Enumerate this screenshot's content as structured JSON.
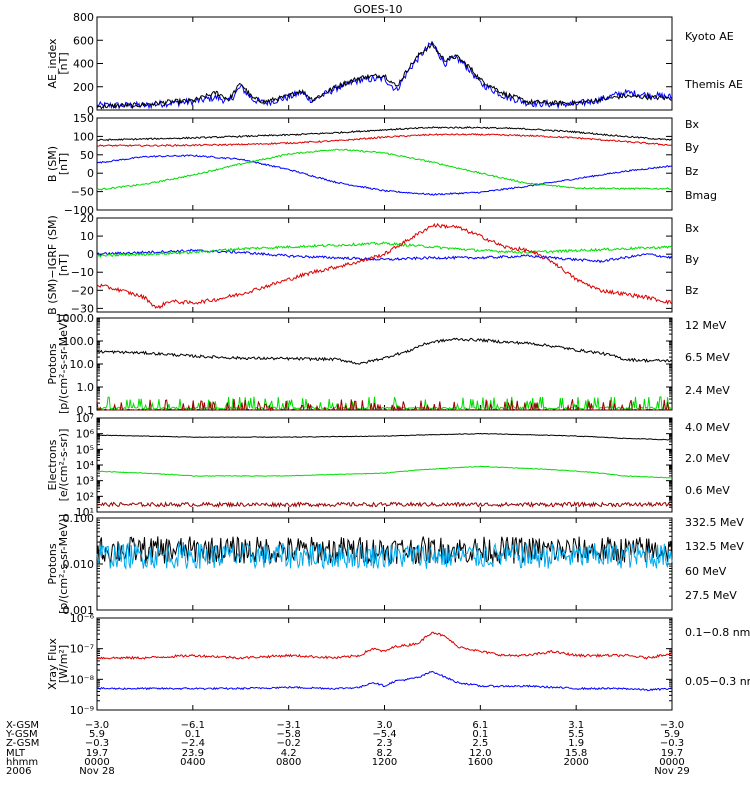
{
  "title": "GOES-10",
  "x_ticks": [
    0,
    4,
    8,
    12,
    16,
    20,
    24
  ],
  "colors": {
    "black": "#000000",
    "blue": "#0000ff",
    "green": "#00dd00",
    "red": "#dd0000",
    "darkred": "#9a0000",
    "cyan": "#00aaee",
    "orange": "#ffd200"
  },
  "panels": [
    {
      "key": "ae",
      "ylabel": [
        "AE_index",
        "[nT]"
      ],
      "scale": "linear",
      "ylim": [
        0,
        800
      ],
      "yticks": [
        "0",
        "200",
        "400",
        "600",
        "800"
      ],
      "ytick_values": [
        0,
        200,
        400,
        600,
        800
      ],
      "legend": [
        {
          "text": "Kyoto AE",
          "color": "#0000ff"
        },
        {
          "text": "Themis AE",
          "color": "#000000"
        }
      ],
      "series": [
        {
          "name": "Kyoto AE",
          "color": "#0000ff",
          "noise": 30,
          "x": [
            0,
            2,
            3,
            4,
            5,
            5.5,
            6,
            6.5,
            7,
            8,
            8.5,
            9,
            10,
            11,
            12,
            12.5,
            13,
            13.5,
            14,
            14.5,
            15,
            15.5,
            16,
            17,
            18,
            19,
            20,
            21,
            22,
            23,
            24
          ],
          "y": [
            40,
            40,
            60,
            70,
            110,
            70,
            200,
            90,
            60,
            110,
            150,
            80,
            190,
            260,
            270,
            170,
            340,
            470,
            580,
            400,
            450,
            360,
            230,
            120,
            60,
            50,
            50,
            90,
            150,
            130,
            110
          ]
        },
        {
          "name": "Themis AE",
          "color": "#000000",
          "noise": 20,
          "x": [
            0,
            2,
            3,
            4,
            5,
            5.5,
            6,
            6.5,
            7,
            8,
            8.5,
            9,
            10,
            11,
            12,
            12.5,
            13,
            13.5,
            14,
            14.5,
            15,
            15.5,
            16,
            17,
            18,
            19,
            20,
            21,
            22,
            23,
            24
          ],
          "y": [
            30,
            45,
            70,
            80,
            150,
            90,
            230,
            100,
            70,
            120,
            170,
            90,
            200,
            280,
            300,
            200,
            360,
            490,
            560,
            430,
            460,
            380,
            260,
            140,
            70,
            60,
            60,
            90,
            120,
            110,
            100
          ]
        }
      ]
    },
    {
      "key": "bsm",
      "ylabel": [
        "B (SM)",
        "[nT]"
      ],
      "scale": "linear",
      "ylim": [
        -100,
        150
      ],
      "yticks": [
        "−100",
        "−50",
        "0",
        "50",
        "100",
        "150"
      ],
      "ytick_values": [
        -100,
        -50,
        0,
        50,
        100,
        150
      ],
      "legend": [
        {
          "text": "Bx",
          "color": "#0000ff"
        },
        {
          "text": "By",
          "color": "#00dd00"
        },
        {
          "text": "Bz",
          "color": "#dd0000"
        },
        {
          "text": "Bmag",
          "color": "#000000"
        }
      ],
      "series": [
        {
          "name": "Bx",
          "color": "#0000ff",
          "noise": 0.5,
          "x": [
            0,
            2,
            4,
            6,
            8,
            10,
            12,
            14,
            16,
            18,
            20,
            22,
            24
          ],
          "y": [
            28,
            45,
            48,
            38,
            10,
            -25,
            -48,
            -58,
            -52,
            -35,
            -15,
            5,
            20
          ]
        },
        {
          "name": "By",
          "color": "#00dd00",
          "noise": 0.5,
          "x": [
            0,
            2,
            4,
            6,
            8,
            10,
            12,
            14,
            16,
            18,
            20,
            22,
            24
          ],
          "y": [
            -45,
            -30,
            -5,
            25,
            52,
            65,
            55,
            30,
            0,
            -28,
            -40,
            -42,
            -42
          ]
        },
        {
          "name": "Bz",
          "color": "#dd0000",
          "noise": 0.5,
          "x": [
            0,
            2,
            4,
            6,
            8,
            10,
            12,
            14,
            16,
            18,
            20,
            22,
            24
          ],
          "y": [
            75,
            75,
            76,
            78,
            82,
            88,
            98,
            105,
            105,
            102,
            96,
            86,
            76
          ]
        },
        {
          "name": "Bmag",
          "color": "#000000",
          "noise": 0.5,
          "x": [
            0,
            2,
            4,
            6,
            8,
            10,
            12,
            14,
            16,
            18,
            20,
            22,
            24
          ],
          "y": [
            90,
            93,
            96,
            100,
            104,
            110,
            118,
            124,
            124,
            120,
            112,
            100,
            90
          ]
        }
      ]
    },
    {
      "key": "dbsm",
      "ylabel": [
        "B (SM)−IGRF (SM)",
        "[nT]"
      ],
      "scale": "linear",
      "ylim": [
        -32,
        20
      ],
      "yticks": [
        "−30",
        "−20",
        "−10",
        "0",
        "10",
        "20"
      ],
      "ytick_values": [
        -30,
        -20,
        -10,
        0,
        10,
        20
      ],
      "legend": [
        {
          "text": "Bx",
          "color": "#0000ff"
        },
        {
          "text": "By",
          "color": "#00dd00"
        },
        {
          "text": "Bz",
          "color": "#dd0000"
        }
      ],
      "series": [
        {
          "name": "Bx",
          "color": "#0000ff",
          "noise": 0.8,
          "x": [
            0,
            2,
            4,
            6,
            8,
            10,
            12,
            14,
            16,
            18,
            19,
            20,
            21,
            22,
            23,
            24
          ],
          "y": [
            0,
            1,
            2,
            1,
            -1,
            -2,
            -3,
            -2,
            -2,
            -1,
            -2,
            -3,
            -4,
            -2,
            0,
            -2
          ]
        },
        {
          "name": "By",
          "color": "#00dd00",
          "noise": 0.8,
          "x": [
            0,
            2,
            4,
            6,
            8,
            10,
            12,
            14,
            16,
            18,
            20,
            22,
            24
          ],
          "y": [
            -1,
            0,
            1,
            3,
            4,
            5,
            6,
            4,
            2,
            1,
            2,
            3,
            4
          ]
        },
        {
          "name": "Bz",
          "color": "#dd0000",
          "noise": 1.2,
          "x": [
            0,
            1,
            2,
            2.5,
            3,
            4,
            5,
            6,
            7,
            8,
            9,
            10,
            11,
            12,
            13,
            14,
            15,
            16,
            17,
            18,
            19,
            20,
            21,
            22,
            23,
            24
          ],
          "y": [
            -17,
            -20,
            -24,
            -30,
            -26,
            -27,
            -25,
            -22,
            -18,
            -14,
            -10,
            -7,
            -4,
            0,
            8,
            16,
            15,
            10,
            4,
            2,
            -4,
            -14,
            -20,
            -22,
            -24,
            -27
          ]
        }
      ]
    },
    {
      "key": "protons_low",
      "ylabel": [
        "Protons",
        "[p/(cm²-s-sr-MeV)]"
      ],
      "scale": "log",
      "ylim": [
        0.1,
        1000
      ],
      "yticks": [
        "0.1",
        "1.0",
        "10.0",
        "100.0",
        "1000.0"
      ],
      "ytick_values": [
        0.1,
        1,
        10,
        100,
        1000
      ],
      "legend": [
        {
          "text": "12 MeV",
          "color": "#9a0000"
        },
        {
          "text": "6.5 MeV",
          "color": "#00dd00"
        },
        {
          "text": "2.4 MeV",
          "color": "#000000"
        }
      ],
      "series": [
        {
          "name": "2.4 MeV",
          "color": "#000000",
          "noise": 0.06,
          "x": [
            0,
            2,
            4,
            6,
            8,
            10,
            11,
            12,
            13,
            14,
            15,
            16,
            17,
            18,
            19,
            20,
            21,
            22,
            23,
            24
          ],
          "y": [
            35,
            30,
            22,
            18,
            17,
            16,
            10,
            18,
            35,
            90,
            120,
            110,
            90,
            80,
            60,
            40,
            30,
            16,
            14,
            14
          ]
        },
        {
          "name": "6.5 MeV",
          "color": "#00dd00",
          "noise": 0,
          "spiky": true,
          "base": 0.12,
          "peak": 0.38,
          "x": [
            0,
            24
          ],
          "y": [
            0.12,
            0.12
          ]
        },
        {
          "name": "12 MeV",
          "color": "#9a0000",
          "noise": 0,
          "spiky": true,
          "base": 0.1,
          "peak": 0.3,
          "x": [
            0,
            24
          ],
          "y": [
            0.1,
            0.1
          ]
        }
      ]
    },
    {
      "key": "electrons",
      "ylabel": [
        "Electrons",
        "[e/(cm²-s-sr)]"
      ],
      "scale": "log",
      "ylim": [
        10,
        10000000
      ],
      "yticks": [
        "10¹",
        "10²",
        "10³",
        "10⁴",
        "10⁵",
        "10⁶",
        "10⁷"
      ],
      "ytick_values": [
        10,
        100,
        1000,
        10000,
        100000,
        1000000,
        10000000
      ],
      "legend": [
        {
          "text": "4.0 MeV",
          "color": "#9a0000"
        },
        {
          "text": "2.0 MeV",
          "color": "#00dd00"
        },
        {
          "text": "0.6 MeV",
          "color": "#000000"
        }
      ],
      "series": [
        {
          "name": "0.6 MeV",
          "color": "#000000",
          "noise": 0.02,
          "x": [
            0,
            4,
            8,
            12,
            16,
            20,
            22,
            24
          ],
          "y": [
            800000,
            600000,
            600000,
            700000,
            1000000,
            700000,
            500000,
            400000
          ]
        },
        {
          "name": "2.0 MeV",
          "color": "#00dd00",
          "noise": 0.02,
          "x": [
            0,
            4,
            8,
            12,
            16,
            20,
            22,
            24
          ],
          "y": [
            4000,
            2000,
            2000,
            3000,
            8000,
            4000,
            2000,
            1500
          ]
        },
        {
          "name": "4.0 MeV",
          "color": "#9a0000",
          "noise": 0.13,
          "x": [
            0,
            24
          ],
          "y": [
            30,
            30
          ]
        }
      ]
    },
    {
      "key": "protons_high",
      "ylabel": [
        "Protons",
        "[p/(cm²-s-sr-MeV)]"
      ],
      "scale": "log",
      "ylim": [
        0.001,
        0.1
      ],
      "yticks": [
        "0.001",
        "0.010",
        "0.100"
      ],
      "ytick_values": [
        0.001,
        0.01,
        0.1
      ],
      "legend": [
        {
          "text": "332.5 MeV",
          "color": "#dd0000"
        },
        {
          "text": "132.5 MeV",
          "color": "#ffd200"
        },
        {
          "text": "60 MeV",
          "color": "#00aaee"
        },
        {
          "text": "27.5 MeV",
          "color": "#000000"
        }
      ],
      "series": [
        {
          "name": "27.5 MeV",
          "color": "#000000",
          "noise": 0.3,
          "x": [
            0,
            24
          ],
          "y": [
            0.02,
            0.02
          ]
        },
        {
          "name": "60 MeV",
          "color": "#00aaee",
          "noise": 0.28,
          "x": [
            0,
            24
          ],
          "y": [
            0.015,
            0.015
          ]
        }
      ]
    },
    {
      "key": "xray",
      "ylabel": [
        "Xray Flux",
        "[W/m²]"
      ],
      "scale": "log",
      "ylim": [
        1e-09,
        1e-06
      ],
      "yticks": [
        "10⁻⁹",
        "10⁻⁸",
        "10⁻⁷",
        "10⁻⁶"
      ],
      "ytick_values": [
        1e-09,
        1e-08,
        1e-07,
        1e-06
      ],
      "legend": [
        {
          "text": "0.1−0.8 nm",
          "color": "#dd0000"
        },
        {
          "text": "0.05−0.3 nm",
          "color": "#0000ff"
        }
      ],
      "series": [
        {
          "name": "0.1-0.8 nm",
          "color": "#dd0000",
          "noise": 0.04,
          "x": [
            0,
            2,
            4,
            6,
            8,
            10,
            11,
            11.5,
            12,
            12.5,
            13,
            13.5,
            14,
            14.5,
            15,
            16,
            17,
            18,
            19,
            20,
            21,
            22,
            23,
            24
          ],
          "y": [
            5e-08,
            5e-08,
            6e-08,
            5e-08,
            6e-08,
            5e-08,
            6e-08,
            1e-07,
            8e-08,
            1.2e-07,
            1.3e-07,
            1.6e-07,
            3.5e-07,
            2.5e-07,
            1.2e-07,
            8e-08,
            6e-08,
            6e-08,
            8e-08,
            6e-08,
            6e-08,
            6e-08,
            5e-08,
            7e-08
          ]
        },
        {
          "name": "0.05-0.3 nm",
          "color": "#0000ff",
          "noise": 0.03,
          "x": [
            0,
            4,
            6,
            8,
            10,
            11,
            11.5,
            12,
            12.5,
            13,
            13.5,
            14,
            14.5,
            15,
            16,
            18,
            20,
            22,
            23,
            24
          ],
          "y": [
            5e-09,
            5e-09,
            5e-09,
            5.5e-09,
            5e-09,
            5.5e-09,
            8e-09,
            6e-09,
            9e-09,
            1e-08,
            1.2e-08,
            1.8e-08,
            1.2e-08,
            8e-09,
            6e-09,
            6e-09,
            5e-09,
            5e-09,
            4.5e-09,
            5e-09
          ]
        }
      ]
    }
  ],
  "ephemeris": {
    "labels": [
      "X-GSM",
      "Y-GSM",
      "Z-GSM",
      "MLT",
      "hhmm",
      "2006"
    ],
    "columns": [
      [
        "−3.0",
        "5.9",
        "−0.3",
        "19.7",
        "0000",
        "Nov 28"
      ],
      [
        "−6.1",
        "0.1",
        "−2.4",
        "23.9",
        "0400",
        ""
      ],
      [
        "−3.1",
        "−5.8",
        "−0.2",
        "4.2",
        "0800",
        ""
      ],
      [
        "3.0",
        "−5.4",
        "2.3",
        "8.2",
        "1200",
        ""
      ],
      [
        "6.1",
        "0.1",
        "2.5",
        "12.0",
        "1600",
        ""
      ],
      [
        "3.1",
        "5.5",
        "1.9",
        "15.8",
        "2000",
        ""
      ],
      [
        "−3.0",
        "5.9",
        "−0.3",
        "19.7",
        "0000",
        "Nov 29"
      ]
    ]
  },
  "chart_data": {
    "type": "line",
    "title": "GOES-10",
    "x_units_hours": [
      0,
      24
    ],
    "panels_ref": "panels"
  }
}
